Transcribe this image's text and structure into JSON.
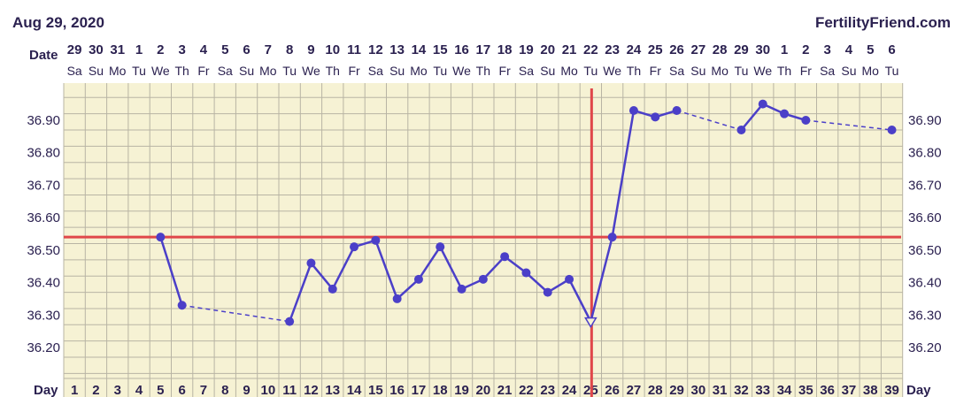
{
  "chart_data": {
    "type": "line",
    "chart_date": "Aug 29, 2020",
    "brand": "FertilityFriend.com",
    "date_row_label": "Date",
    "day_row_label": "Day",
    "dates": [
      "29",
      "30",
      "31",
      "1",
      "2",
      "3",
      "4",
      "5",
      "6",
      "7",
      "8",
      "9",
      "10",
      "11",
      "12",
      "13",
      "14",
      "15",
      "16",
      "17",
      "18",
      "19",
      "20",
      "21",
      "22",
      "23",
      "24",
      "25",
      "26",
      "27",
      "28",
      "29",
      "30",
      "1",
      "2",
      "3",
      "4",
      "5",
      "6"
    ],
    "weekdays": [
      "Sa",
      "Su",
      "Mo",
      "Tu",
      "We",
      "Th",
      "Fr",
      "Sa",
      "Su",
      "Mo",
      "Tu",
      "We",
      "Th",
      "Fr",
      "Sa",
      "Su",
      "Mo",
      "Tu",
      "We",
      "Th",
      "Fr",
      "Sa",
      "Su",
      "Mo",
      "Tu",
      "We",
      "Th",
      "Fr",
      "Sa",
      "Su",
      "Mo",
      "Tu",
      "We",
      "Th",
      "Fr",
      "Sa",
      "Su",
      "Mo",
      "Tu"
    ],
    "days": [
      1,
      2,
      3,
      4,
      5,
      6,
      7,
      8,
      9,
      10,
      11,
      12,
      13,
      14,
      15,
      16,
      17,
      18,
      19,
      20,
      21,
      22,
      23,
      24,
      25,
      26,
      27,
      28,
      29,
      30,
      31,
      32,
      33,
      34,
      35,
      36,
      37,
      38,
      39
    ],
    "ylim": [
      36.12,
      37.02
    ],
    "yticks": [
      36.2,
      36.3,
      36.4,
      36.5,
      36.6,
      36.7,
      36.8,
      36.9
    ],
    "ytick_labels": [
      "36.20",
      "36.30",
      "36.40",
      "36.50",
      "36.60",
      "36.70",
      "36.80",
      "36.90"
    ],
    "grid": true,
    "coverline": 36.54,
    "ovulation_day": 25,
    "temps": [
      {
        "day": 5,
        "value": 36.54
      },
      {
        "day": 6,
        "value": 36.33
      },
      {
        "day": 11,
        "value": 36.28
      },
      {
        "day": 12,
        "value": 36.46
      },
      {
        "day": 13,
        "value": 36.38
      },
      {
        "day": 14,
        "value": 36.51
      },
      {
        "day": 15,
        "value": 36.53
      },
      {
        "day": 16,
        "value": 36.35
      },
      {
        "day": 17,
        "value": 36.41
      },
      {
        "day": 18,
        "value": 36.51
      },
      {
        "day": 19,
        "value": 36.38
      },
      {
        "day": 20,
        "value": 36.41
      },
      {
        "day": 21,
        "value": 36.48
      },
      {
        "day": 22,
        "value": 36.43
      },
      {
        "day": 23,
        "value": 36.37
      },
      {
        "day": 24,
        "value": 36.41
      },
      {
        "day": 25,
        "value": 36.28,
        "marker": "open-triangle"
      },
      {
        "day": 26,
        "value": 36.54
      },
      {
        "day": 27,
        "value": 36.93
      },
      {
        "day": 28,
        "value": 36.91
      },
      {
        "day": 29,
        "value": 36.93
      },
      {
        "day": 32,
        "value": 36.87
      },
      {
        "day": 33,
        "value": 36.95
      },
      {
        "day": 34,
        "value": 36.92
      },
      {
        "day": 35,
        "value": 36.9
      },
      {
        "day": 39,
        "value": 36.87
      }
    ],
    "colors": {
      "plot_bg": "#f6f2d4",
      "grid": "#b8b4a4",
      "line": "#4b3fc8",
      "coverline": "#e0474a",
      "ovulation": "#e0474a",
      "text": "#2b2150"
    }
  }
}
